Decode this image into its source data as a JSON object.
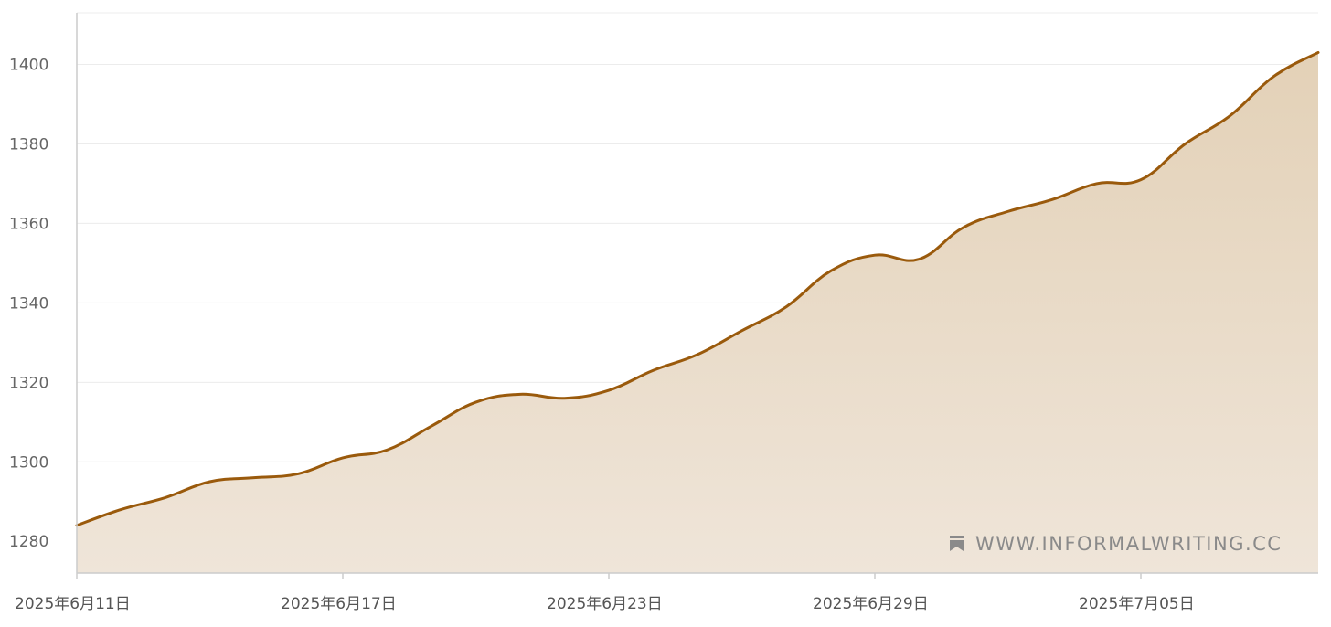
{
  "watermark": {
    "text": "WWW.INFORMALWRITING.CC",
    "icon": "bookmark-icon"
  },
  "colors": {
    "line": "#9a5a0c",
    "fill_top": "#e3d1b7",
    "fill_bottom": "#efe5d9",
    "grid": "#ececec",
    "axis": "#cccccc",
    "text": "#666666"
  },
  "chart_data": {
    "type": "area",
    "title": "",
    "xlabel": "",
    "ylabel": "",
    "ylim": [
      1272,
      1413
    ],
    "xlim": [
      "2025-06-11",
      "2025-07-09"
    ],
    "yticks": [
      1280,
      1300,
      1320,
      1340,
      1360,
      1380,
      1400
    ],
    "xticks": [
      "2025-06-11",
      "2025-06-17",
      "2025-06-23",
      "2025-06-29",
      "2025-07-05"
    ],
    "xtick_labels": [
      "2025年6月11日",
      "2025年6月17日",
      "2025年6月23日",
      "2025年6月29日",
      "2025年7月05日"
    ],
    "grid": true,
    "legend": "none",
    "series": [
      {
        "x": [
          "2025-06-11",
          "2025-06-12",
          "2025-06-13",
          "2025-06-14",
          "2025-06-15",
          "2025-06-16",
          "2025-06-17",
          "2025-06-18",
          "2025-06-19",
          "2025-06-20",
          "2025-06-21",
          "2025-06-22",
          "2025-06-23",
          "2025-06-24",
          "2025-06-25",
          "2025-06-26",
          "2025-06-27",
          "2025-06-28",
          "2025-06-29",
          "2025-06-30",
          "2025-07-01",
          "2025-07-02",
          "2025-07-03",
          "2025-07-04",
          "2025-07-05",
          "2025-07-06",
          "2025-07-07",
          "2025-07-08",
          "2025-07-09"
        ],
        "values": [
          1284,
          1288,
          1291,
          1295,
          1296,
          1297,
          1301,
          1303,
          1309,
          1315,
          1317,
          1316,
          1318,
          1323,
          1327,
          1333,
          1339,
          1348,
          1352,
          1351,
          1359,
          1363,
          1366,
          1370,
          1371,
          1380,
          1387,
          1397,
          1403
        ]
      }
    ]
  }
}
